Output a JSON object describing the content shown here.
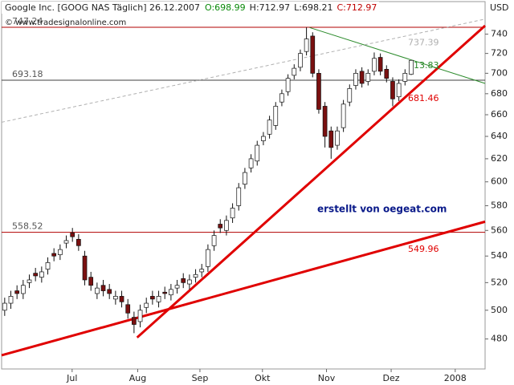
{
  "chart_data": {
    "type": "candlestick",
    "title": "Google Inc. [GOOG NAS  Täglich] 26.12.2007",
    "ohlc_labels": [
      "O:698.99",
      "H:712.97",
      "L:698.21",
      "C:712.97"
    ],
    "watermark": "© www.tradesignalonline.com",
    "annotation": "erstellt von oegeat.com",
    "y_unit": "USD",
    "log_scale": true,
    "xlim": [
      -1,
      156
    ],
    "ylim": [
      460,
      775
    ],
    "yticks": [
      480,
      500,
      520,
      540,
      560,
      580,
      600,
      620,
      640,
      660,
      680,
      700,
      720,
      740
    ],
    "xticks": [
      {
        "value": 21.9,
        "label": "Jul"
      },
      {
        "value": 43.2,
        "label": "Aug"
      },
      {
        "value": 63.4,
        "label": "Sep"
      },
      {
        "value": 83.7,
        "label": "Okt"
      },
      {
        "value": 104.5,
        "label": "Nov"
      },
      {
        "value": 125.5,
        "label": "Dez"
      },
      {
        "value": 146.3,
        "label": "2008"
      }
    ],
    "up_color": "#ffffff",
    "down_color": "#7a1010",
    "x": [
      0,
      2,
      4,
      6,
      8,
      10,
      12,
      14,
      16,
      18,
      20,
      22,
      24,
      26,
      28,
      30,
      32,
      34,
      36,
      38,
      40,
      42,
      44,
      46,
      48,
      50,
      52,
      54,
      56,
      58,
      60,
      62,
      64,
      66,
      68,
      70,
      72,
      74,
      76,
      78,
      80,
      82,
      84,
      86,
      88,
      90,
      92,
      94,
      96,
      98,
      100,
      102,
      104,
      106,
      108,
      110,
      112,
      114,
      116,
      118,
      120,
      122,
      124,
      126,
      128,
      130,
      132
    ],
    "open": [
      500,
      505,
      514,
      512,
      520,
      527,
      524,
      530,
      542,
      541,
      550,
      558,
      553,
      540,
      524,
      512,
      518,
      515,
      508,
      510,
      504,
      495,
      492,
      502,
      510,
      506,
      513,
      511,
      516,
      523,
      519,
      524,
      528,
      532,
      548,
      565,
      560,
      570,
      580,
      598,
      612,
      618,
      636,
      642,
      650,
      672,
      682,
      698,
      706,
      722,
      738,
      700,
      668,
      645,
      632,
      648,
      672,
      688,
      702,
      692,
      702,
      716,
      704,
      692,
      677,
      692,
      698.99
    ],
    "high": [
      509,
      514,
      518,
      522,
      526,
      531,
      532,
      539,
      546,
      549,
      556,
      562,
      557,
      544,
      528,
      520,
      522,
      519,
      514,
      514,
      508,
      499,
      504,
      509,
      514,
      514,
      517,
      519,
      522,
      527,
      526,
      530,
      534,
      549,
      560,
      569,
      572,
      582,
      599,
      612,
      624,
      636,
      644,
      659,
      672,
      684,
      699,
      709,
      724,
      747.24,
      742,
      704,
      672,
      649,
      649,
      674,
      689,
      704,
      706,
      704,
      721,
      720,
      708,
      696,
      694,
      704,
      712.97
    ],
    "low": [
      496,
      501,
      508,
      508,
      516,
      521,
      520,
      526,
      536,
      537,
      546,
      551,
      544,
      518,
      514,
      508,
      510,
      508,
      504,
      502,
      494,
      484,
      488,
      498,
      504,
      502,
      508,
      507,
      512,
      516,
      515,
      520,
      524,
      528,
      544,
      558,
      556,
      566,
      576,
      594,
      608,
      614,
      632,
      638,
      646,
      668,
      678,
      694,
      702,
      718,
      696,
      661,
      630,
      620,
      628,
      644,
      668,
      684,
      686,
      688,
      698,
      698,
      691,
      668,
      673,
      688,
      698.21
    ],
    "close": [
      505,
      510,
      512,
      518,
      522,
      525,
      528,
      535,
      540,
      545,
      552,
      555,
      548,
      522,
      518,
      516,
      514,
      512,
      510,
      506,
      498,
      490,
      500,
      505,
      508,
      510,
      512,
      515,
      518,
      520,
      522,
      526,
      530,
      545,
      556,
      562,
      568,
      578,
      595,
      608,
      620,
      632,
      640,
      655,
      668,
      680,
      695,
      705,
      720,
      735,
      700,
      665,
      640,
      630,
      645,
      670,
      685,
      700,
      690,
      700,
      715,
      702,
      695,
      675,
      690,
      700,
      712.97
    ],
    "levels": [
      {
        "value": 747.24,
        "color": "#b00000"
      },
      {
        "value": 693.18,
        "color": "#404040"
      },
      {
        "value": 558.52,
        "color": "#b00000"
      }
    ],
    "lines": [
      {
        "color": "#e00000",
        "width": 3,
        "dashed": false,
        "points": [
          [
            -1,
            469
          ],
          [
            156,
            567
          ]
        ],
        "label_value": 549.96
      },
      {
        "color": "#e00000",
        "width": 3,
        "dashed": false,
        "points": [
          [
            43,
            481
          ],
          [
            156,
            749
          ]
        ],
        "label_value": 681.46
      },
      {
        "color": "#2a8a2a",
        "width": 1,
        "dashed": false,
        "points": [
          [
            99,
            747
          ],
          [
            156,
            690
          ]
        ],
        "label_value": 713.83
      },
      {
        "color": "#b0b0b0",
        "width": 1,
        "dashed": true,
        "points": [
          [
            -1,
            653
          ],
          [
            156,
            756
          ]
        ],
        "label_value": 737.39
      }
    ]
  }
}
